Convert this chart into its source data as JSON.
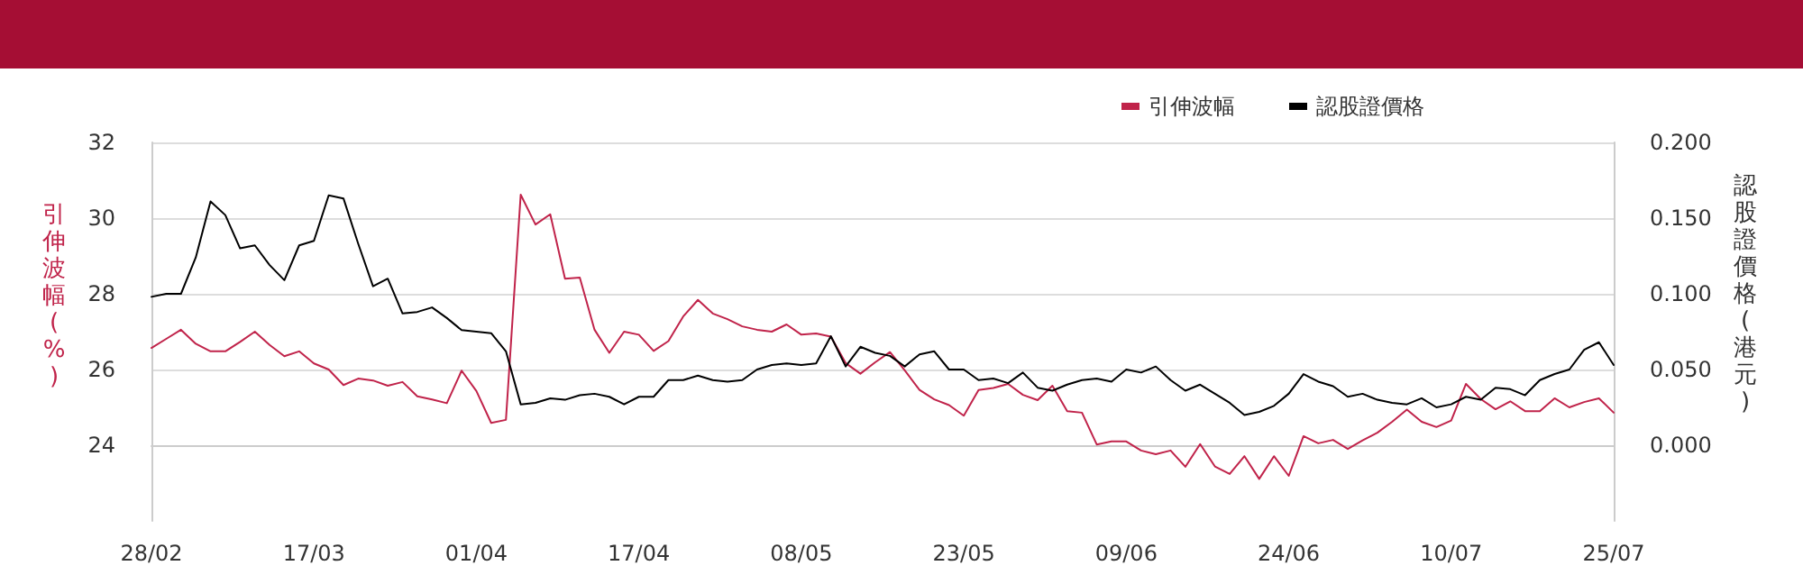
{
  "chart_data": {
    "type": "line",
    "ylabel": "引伸波幅(%)",
    "y2label": "認股證價格(港元)",
    "categories": [
      "28/02",
      null,
      null,
      null,
      null,
      null,
      null,
      null,
      null,
      null,
      null,
      "17/03",
      null,
      null,
      null,
      null,
      null,
      null,
      null,
      null,
      null,
      null,
      "01/04",
      null,
      null,
      null,
      null,
      null,
      null,
      null,
      null,
      null,
      null,
      "17/04",
      null,
      null,
      null,
      null,
      null,
      null,
      null,
      null,
      null,
      null,
      "08/05",
      null,
      null,
      null,
      null,
      null,
      null,
      null,
      null,
      null,
      null,
      "23/05",
      null,
      null,
      null,
      null,
      null,
      null,
      null,
      null,
      null,
      null,
      "09/06",
      null,
      null,
      null,
      null,
      null,
      null,
      null,
      null,
      null,
      null,
      "24/06",
      null,
      null,
      null,
      null,
      null,
      null,
      null,
      null,
      null,
      null,
      "10/07",
      null,
      null,
      null,
      null,
      null,
      null,
      null,
      null,
      null,
      null,
      "25/07"
    ],
    "series": [
      {
        "name": "引伸波幅",
        "color": "#c0234a",
        "values": [
          26.57,
          26.81,
          27.05,
          26.68,
          26.48,
          26.48,
          26.73,
          27.0,
          26.65,
          26.35,
          26.48,
          26.16,
          26.0,
          25.59,
          25.76,
          25.71,
          25.57,
          25.67,
          25.29,
          25.21,
          25.11,
          25.97,
          25.43,
          24.59,
          24.67,
          30.62,
          29.83,
          30.1,
          28.4,
          28.43,
          27.05,
          26.44,
          27.0,
          26.92,
          26.49,
          26.75,
          27.4,
          27.84,
          27.48,
          27.33,
          27.14,
          27.05,
          27.0,
          27.19,
          26.92,
          26.95,
          26.87,
          26.17,
          25.89,
          26.19,
          26.46,
          25.98,
          25.46,
          25.21,
          25.06,
          24.78,
          25.46,
          25.51,
          25.62,
          25.33,
          25.19,
          25.57,
          24.9,
          24.86,
          24.02,
          24.1,
          24.1,
          23.86,
          23.76,
          23.86,
          23.43,
          24.03,
          23.44,
          23.24,
          23.71,
          23.11,
          23.71,
          23.19,
          24.24,
          24.05,
          24.14,
          23.9,
          24.13,
          24.33,
          24.62,
          24.94,
          24.62,
          24.48,
          24.65,
          25.62,
          25.22,
          24.95,
          25.16,
          24.9,
          24.9,
          25.24,
          25.0,
          25.14,
          25.24,
          24.86
        ]
      },
      {
        "name": "認股證價格",
        "color": "#000000",
        "axis": "y2",
        "values": [
          0.098,
          0.1,
          0.1,
          0.124,
          0.161,
          0.152,
          0.13,
          0.132,
          0.119,
          0.109,
          0.132,
          0.135,
          0.165,
          0.163,
          0.133,
          0.105,
          0.11,
          0.087,
          0.088,
          0.091,
          0.084,
          0.076,
          0.075,
          0.074,
          0.062,
          0.027,
          0.028,
          0.031,
          0.03,
          0.033,
          0.034,
          0.032,
          0.027,
          0.032,
          0.032,
          0.043,
          0.043,
          0.046,
          0.043,
          0.042,
          0.043,
          0.05,
          0.053,
          0.054,
          0.053,
          0.054,
          0.072,
          0.052,
          0.065,
          0.061,
          0.059,
          0.052,
          0.06,
          0.062,
          0.05,
          0.05,
          0.043,
          0.044,
          0.041,
          0.048,
          0.038,
          0.036,
          0.04,
          0.043,
          0.044,
          0.042,
          0.05,
          0.048,
          0.052,
          0.043,
          0.036,
          0.04,
          0.034,
          0.028,
          0.02,
          0.022,
          0.026,
          0.034,
          0.047,
          0.042,
          0.039,
          0.032,
          0.034,
          0.03,
          0.028,
          0.027,
          0.031,
          0.025,
          0.027,
          0.032,
          0.03,
          0.038,
          0.037,
          0.033,
          0.043,
          0.047,
          0.05,
          0.063,
          0.068,
          0.053
        ]
      }
    ],
    "ylim": [
      22,
      32
    ],
    "yticks": [
      24,
      26,
      28,
      30,
      32
    ],
    "y2lim": [
      -0.05,
      0.2
    ],
    "y2ticks": [
      {
        "value": 0,
        "label": "0.000"
      },
      {
        "value": 0.05,
        "label": "0.050"
      },
      {
        "value": 0.1,
        "label": "0.100"
      },
      {
        "value": 0.15,
        "label": "0.150"
      },
      {
        "value": 0.2,
        "label": "0.200"
      }
    ],
    "grid": "y",
    "legend": "top right",
    "marker": "none",
    "line_style": "solid"
  }
}
